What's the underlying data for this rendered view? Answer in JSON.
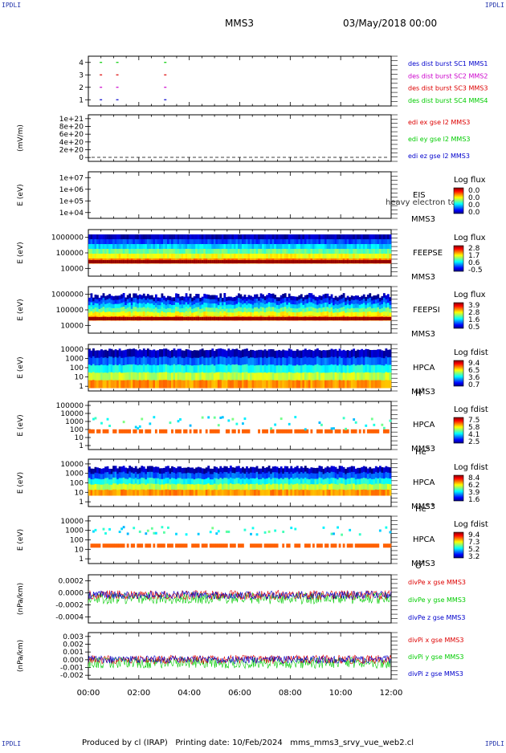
{
  "header": {
    "corner_tl": "IPDLI",
    "corner_tr": "IPDLI",
    "corner_bl": "IPDLI",
    "corner_br": "IPDLI",
    "mission": "MMS3",
    "date": "03/May/2018 00:00"
  },
  "footer": {
    "text": "Produced by cl (IRAP)   Printing date: 10/Feb/2024   mms_mms3_srvy_vue_web2.cl"
  },
  "time_axis": {
    "ticks": [
      "00:00",
      "02:00",
      "04:00",
      "06:00",
      "08:00",
      "10:00",
      "12:00"
    ],
    "range_hours": [
      0,
      12
    ]
  },
  "colors": {
    "red": "#dd0000",
    "green": "#00cc00",
    "blue": "#0000cc",
    "magenta": "#cc00cc"
  },
  "chart_data": [
    {
      "type": "scatter",
      "id": "burst",
      "ylabel": "",
      "yticks": [
        "1",
        "2",
        "3",
        "4"
      ],
      "ylim": [
        0.5,
        4.5
      ],
      "legend": [
        {
          "label": "des dist burst SC1 MMS1",
          "color": "#0000cc"
        },
        {
          "label": "des dist burst SC2 MMS2",
          "color": "#cc00cc"
        },
        {
          "label": "des dist burst SC3 MMS3",
          "color": "#dd0000"
        },
        {
          "label": "des dist burst SC4 MMS4",
          "color": "#00cc00"
        }
      ],
      "series": [
        {
          "sc": 1,
          "color": "#0000cc",
          "t": [
            0.45,
            1.1,
            3.0
          ]
        },
        {
          "sc": 2,
          "color": "#cc00cc",
          "t": [
            0.45,
            1.1,
            3.0
          ]
        },
        {
          "sc": 3,
          "color": "#dd0000",
          "t": [
            0.45,
            1.1,
            3.0
          ]
        },
        {
          "sc": 4,
          "color": "#00cc00",
          "t": [
            0.45,
            1.1,
            3.0
          ]
        }
      ]
    },
    {
      "type": "line",
      "id": "edi",
      "ylabel": "(mV/m)",
      "yticks": [
        "0",
        "2e+20",
        "4e+20",
        "6e+20",
        "8e+20",
        "1e+21"
      ],
      "ylim": [
        0,
        1e+21
      ],
      "legend": [
        {
          "label": "edi ex gse l2 MMS3",
          "color": "#dd0000"
        },
        {
          "label": "edi ey gse l2 MMS3",
          "color": "#00cc00"
        },
        {
          "label": "edi ez gse l2 MMS3",
          "color": "#0000cc"
        }
      ]
    },
    {
      "type": "heatmap",
      "id": "eis",
      "ylabel": "E (eV)",
      "yticks": [
        "1e+04",
        "1e+05",
        "1e+06",
        "1e+07"
      ],
      "ylim": [
        10000,
        10000000
      ],
      "instrument": [
        "EIS",
        "MMS3"
      ],
      "overlay_text": "heavy electron to",
      "colorbar_title": "Log flux",
      "colorbar_ticks": [
        "0.0",
        "0.0",
        "0.0",
        "0.0"
      ]
    },
    {
      "type": "heatmap",
      "id": "feepse",
      "ylabel": "E (eV)",
      "yticks": [
        "10000",
        "100000",
        "1000000"
      ],
      "ylim": [
        10000,
        1000000
      ],
      "instrument": [
        "FEEPSE",
        "MMS3"
      ],
      "colorbar_title": "Log flux",
      "colorbar_ticks": [
        "2.8",
        "1.7",
        "0.6",
        "-0.5"
      ]
    },
    {
      "type": "heatmap",
      "id": "feepsi",
      "ylabel": "E (eV)",
      "yticks": [
        "10000",
        "100000",
        "1000000"
      ],
      "ylim": [
        10000,
        1000000
      ],
      "instrument": [
        "FEEPSI",
        "MMS3"
      ],
      "colorbar_title": "Log flux",
      "colorbar_ticks": [
        "3.9",
        "2.8",
        "1.6",
        "0.5"
      ]
    },
    {
      "type": "heatmap",
      "id": "hpca_h",
      "ylabel": "E (eV)",
      "yticks": [
        "1",
        "10",
        "100",
        "1000",
        "10000"
      ],
      "ylim": [
        1,
        40000
      ],
      "instrument": [
        "HPCA",
        "MMS3"
      ],
      "species": "H",
      "species_sup": "+",
      "colorbar_title": "Log fdist",
      "colorbar_ticks": [
        "9.4",
        "6.5",
        "3.6",
        "0.7"
      ]
    },
    {
      "type": "heatmap",
      "id": "hpca_he",
      "ylabel": "E (eV)",
      "yticks": [
        "1",
        "10",
        "100",
        "1000",
        "10000",
        "100000"
      ],
      "ylim": [
        1,
        100000
      ],
      "instrument": [
        "HPCA",
        "MMS3"
      ],
      "species": "He",
      "species_sup": "+",
      "colorbar_title": "Log fdist",
      "colorbar_ticks": [
        "7.5",
        "5.8",
        "4.1",
        "2.5"
      ]
    },
    {
      "type": "heatmap",
      "id": "hpca_hepp",
      "ylabel": "E (eV)",
      "yticks": [
        "1",
        "10",
        "100",
        "1000",
        "10000"
      ],
      "ylim": [
        1,
        40000
      ],
      "instrument": [
        "HPCA",
        "MMS3"
      ],
      "species": "He",
      "species_sup": "++",
      "colorbar_title": "Log fdist",
      "colorbar_ticks": [
        "8.4",
        "6.2",
        "3.9",
        "1.6"
      ]
    },
    {
      "type": "heatmap",
      "id": "hpca_o",
      "ylabel": "E (eV)",
      "yticks": [
        "1",
        "10",
        "100",
        "1000",
        "10000"
      ],
      "ylim": [
        1,
        40000
      ],
      "instrument": [
        "HPCA",
        "MMS3"
      ],
      "species": "O",
      "species_sup": "+",
      "colorbar_title": "Log fdist",
      "colorbar_ticks": [
        "9.4",
        "7.3",
        "5.2",
        "3.2"
      ]
    },
    {
      "type": "line",
      "id": "divpe",
      "ylabel": "(nPa/km)",
      "yticks": [
        "-0.0004",
        "-0.0002",
        "0.0000",
        "0.0002"
      ],
      "ylim": [
        -0.00045,
        0.0003
      ],
      "legend": [
        {
          "label": "divPe x gse MMS3",
          "color": "#dd0000"
        },
        {
          "label": "divPe y gse MMS3",
          "color": "#00cc00"
        },
        {
          "label": "divPe z gse MMS3",
          "color": "#0000cc"
        }
      ]
    },
    {
      "type": "line",
      "id": "divpi",
      "ylabel": "(nPa/km)",
      "yticks": [
        "-0.002",
        "-0.001",
        "0.000",
        "0.001",
        "0.002",
        "0.003"
      ],
      "ylim": [
        -0.0023,
        0.0032
      ],
      "legend": [
        {
          "label": "divPi x gse MMS3",
          "color": "#dd0000"
        },
        {
          "label": "divPi y gse MMS3",
          "color": "#00cc00"
        },
        {
          "label": "divPi z gse MMS3",
          "color": "#0000cc"
        }
      ]
    }
  ]
}
